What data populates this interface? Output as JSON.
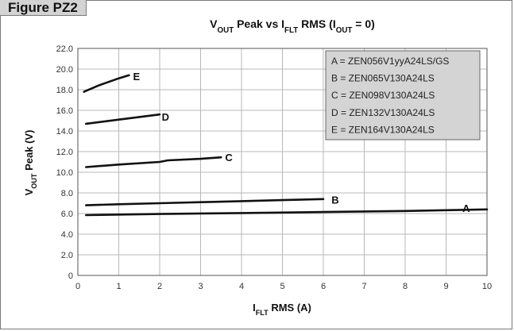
{
  "figure_label": "Figure PZ2",
  "chart_data": {
    "type": "line",
    "title": {
      "parts": [
        {
          "text": "V",
          "sub": false
        },
        {
          "text": "OUT",
          "sub": true
        },
        {
          "text": " Peak vs I",
          "sub": false
        },
        {
          "text": "FLT",
          "sub": true
        },
        {
          "text": " RMS (I",
          "sub": false
        },
        {
          "text": "OUT",
          "sub": true
        },
        {
          "text": " = 0)",
          "sub": false
        }
      ]
    },
    "xlabel": {
      "parts": [
        {
          "text": "I",
          "sub": false
        },
        {
          "text": "FLT",
          "sub": true
        },
        {
          "text": " RMS (A)",
          "sub": false
        }
      ]
    },
    "ylabel": {
      "parts": [
        {
          "text": "V",
          "sub": false
        },
        {
          "text": "OUT",
          "sub": true
        },
        {
          "text": " Peak (V)",
          "sub": false
        }
      ]
    },
    "xlim": [
      0,
      10
    ],
    "ylim": [
      0,
      22
    ],
    "x_ticks": [
      0,
      1,
      2,
      3,
      4,
      5,
      6,
      7,
      8,
      9,
      10
    ],
    "x_tick_labels": [
      "0",
      "1",
      "2",
      "3",
      "4",
      "5",
      "6",
      "7",
      "8",
      "9",
      "10"
    ],
    "y_ticks": [
      0,
      2,
      4,
      6,
      8,
      10,
      12,
      14,
      16,
      18,
      20,
      22
    ],
    "y_tick_labels": [
      "0",
      "2.0",
      "4.0",
      "6.0",
      "8.0",
      "10.0",
      "12.0",
      "14.0",
      "16.0",
      "18.0",
      "20.0",
      "22.0"
    ],
    "grid": true,
    "legend_position": "top-right",
    "legend": [
      "A = ZEN056V1yyA24LS/GS",
      "B = ZEN065V130A24LS",
      "C = ZEN098V130A24LS",
      "D = ZEN132V130A24LS",
      "E = ZEN164V130A24LS"
    ],
    "series": [
      {
        "name": "A",
        "x": [
          0.2,
          2,
          4,
          6,
          8,
          10
        ],
        "y": [
          5.85,
          5.95,
          6.05,
          6.15,
          6.25,
          6.4
        ]
      },
      {
        "name": "B",
        "x": [
          0.2,
          1,
          2,
          3,
          4,
          5,
          6
        ],
        "y": [
          6.8,
          6.9,
          7.0,
          7.1,
          7.2,
          7.3,
          7.4
        ]
      },
      {
        "name": "C",
        "x": [
          0.2,
          1,
          2,
          2.2,
          3,
          3.5
        ],
        "y": [
          10.5,
          10.75,
          11.0,
          11.15,
          11.3,
          11.45
        ]
      },
      {
        "name": "D",
        "x": [
          0.2,
          1,
          2
        ],
        "y": [
          14.7,
          15.1,
          15.6
        ]
      },
      {
        "name": "E",
        "x": [
          0.15,
          0.5,
          1,
          1.25
        ],
        "y": [
          17.8,
          18.4,
          19.1,
          19.4
        ]
      }
    ],
    "series_labels": [
      {
        "text": "A",
        "x": 9.4,
        "y": 6.55
      },
      {
        "text": "B",
        "x": 6.2,
        "y": 7.35
      },
      {
        "text": "C",
        "x": 3.6,
        "y": 11.45
      },
      {
        "text": "D",
        "x": 2.05,
        "y": 15.4
      },
      {
        "text": "E",
        "x": 1.35,
        "y": 19.3
      }
    ]
  }
}
